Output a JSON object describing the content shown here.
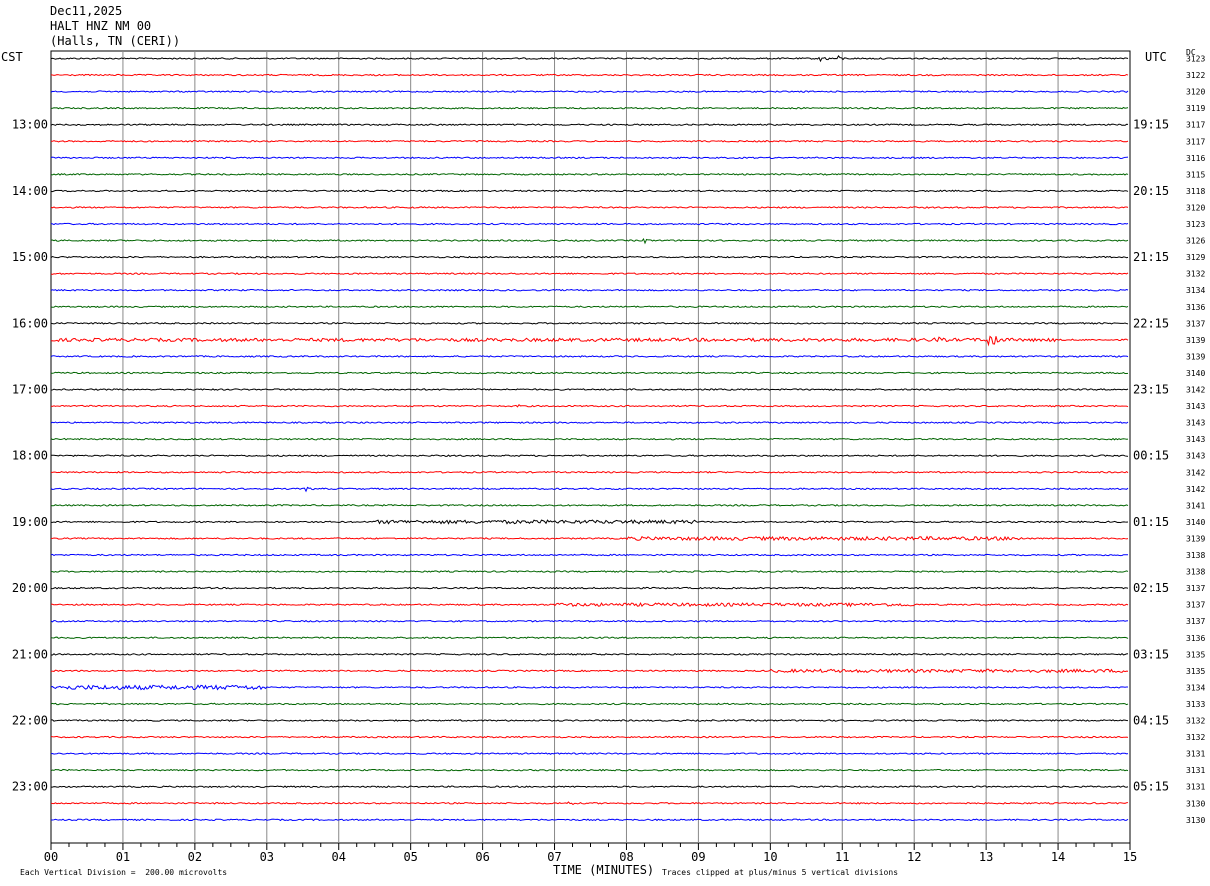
{
  "header": {
    "date": "Dec11,2025",
    "station": "HALT HNZ NM 00",
    "location": "(Halls, TN (CERI))"
  },
  "left_axis_title": "CST",
  "right_axis_title": "UTC",
  "dc_title": "DC",
  "colors": {
    "trace_cycle": [
      "#000000",
      "#ff0000",
      "#0000ff",
      "#006400"
    ],
    "grid": "#888888"
  },
  "chart_data": {
    "type": "line",
    "x_axis": {
      "label": "TIME (MINUTES)",
      "range": [
        0,
        15
      ],
      "ticks": [
        "00",
        "01",
        "02",
        "03",
        "04",
        "05",
        "06",
        "07",
        "08",
        "09",
        "10",
        "11",
        "12",
        "13",
        "14",
        "15"
      ],
      "minor_ticks_per_minute": 4
    },
    "left_hour_labels": [
      "13:00",
      "14:00",
      "15:00",
      "16:00",
      "17:00",
      "18:00",
      "19:00",
      "20:00",
      "21:00",
      "22:00",
      "23:00"
    ],
    "right_hour_labels": [
      "19:15",
      "20:15",
      "21:15",
      "22:15",
      "23:15",
      "00:15",
      "01:15",
      "02:15",
      "03:15",
      "04:15",
      "05:15"
    ],
    "dc_offsets": [
      3123,
      3122,
      3120,
      3119,
      3117,
      3117,
      3116,
      3115,
      3118,
      3120,
      3123,
      3126,
      3129,
      3132,
      3134,
      3136,
      3137,
      3139,
      3139,
      3140,
      3142,
      3143,
      3143,
      3143,
      3143,
      3142,
      3142,
      3141,
      3140,
      3139,
      3138,
      3138,
      3137,
      3137,
      3137,
      3136,
      3135,
      3135,
      3134,
      3133,
      3132,
      3132,
      3131,
      3131,
      3131,
      3130,
      3130
    ],
    "traces_per_hour": 4,
    "events": [
      {
        "trace": 0,
        "minute": 10.7,
        "amplitude": 5
      },
      {
        "trace": 0,
        "minute": 10.95,
        "amplitude": 3
      },
      {
        "trace": 17,
        "minute": 12.3,
        "amplitude": 5
      },
      {
        "trace": 17,
        "minute": 13.05,
        "amplitude": 16
      },
      {
        "trace": 11,
        "minute": 8.25,
        "amplitude": 3
      },
      {
        "trace": 21,
        "minute": 6.5,
        "amplitude": 2
      },
      {
        "trace": 26,
        "minute": 3.55,
        "amplitude": 3
      },
      {
        "trace": 29,
        "minute": 12.7,
        "amplitude": 3
      },
      {
        "trace": 38,
        "minute": 0.8,
        "amplitude": 3
      },
      {
        "trace": 45,
        "minute": 7.2,
        "amplitude": 3
      }
    ],
    "noisy_segments": [
      {
        "trace": 17,
        "from": 0,
        "to": 14,
        "level": 1.6
      },
      {
        "trace": 28,
        "from": 4.5,
        "to": 9,
        "level": 1.8
      },
      {
        "trace": 29,
        "from": 8,
        "to": 13.5,
        "level": 1.8
      },
      {
        "trace": 33,
        "from": 7,
        "to": 12,
        "level": 1.6
      },
      {
        "trace": 37,
        "from": 10,
        "to": 15,
        "level": 1.6
      },
      {
        "trace": 38,
        "from": 0,
        "to": 3,
        "level": 2.2
      }
    ]
  },
  "footer": {
    "scale_note": "Each Vertical Division =  200.00 microvolts",
    "clip_note": "Traces clipped at plus/minus 5 vertical divisions"
  }
}
